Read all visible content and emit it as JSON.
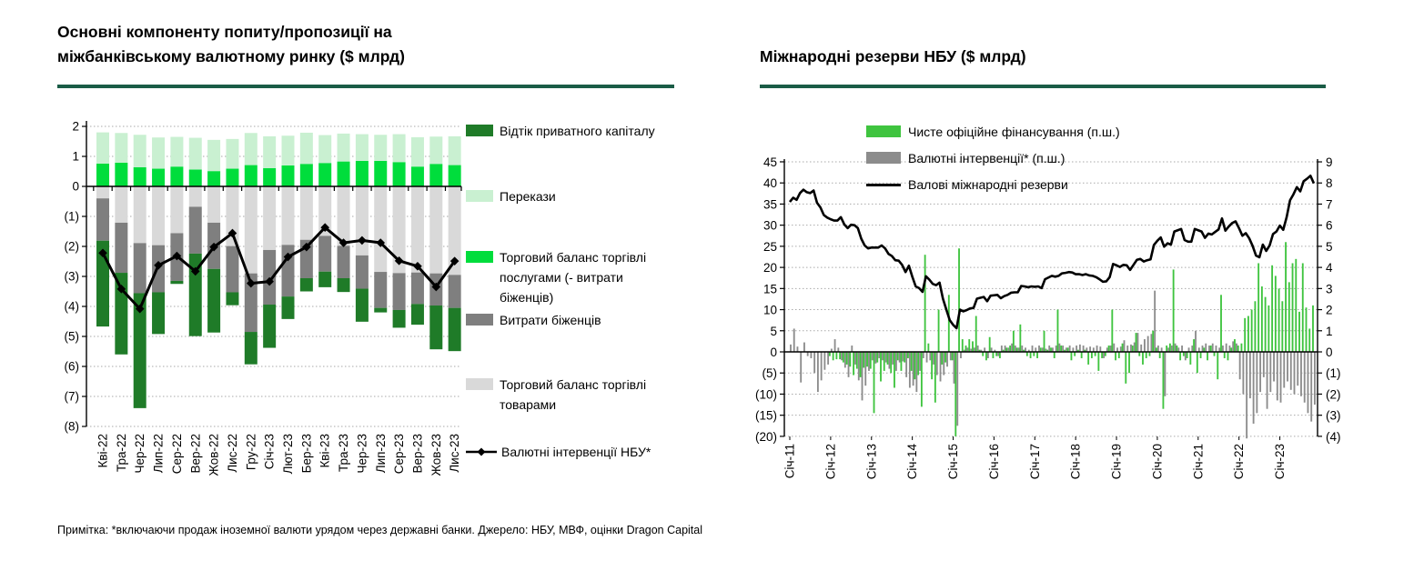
{
  "page": {
    "footnote": "Примітка: *включаючи продаж іноземної валюти урядом через державні банки. Джерело: НБУ, МВФ, оцінки Dragon Capital",
    "accent_underline_color": "#1A5C46",
    "grid_color": "#AAAAAA"
  },
  "chart_data": [
    {
      "type": "bar",
      "variant": "stacked-bars-with-line",
      "title": "Основні компоненту попиту/пропозиції на міжбанківському валютному ринку ($ млрд)",
      "title_lines": [
        "Основні компоненту попиту/пропозиції на",
        "міжбанківському валютному ринку ($ млрд)"
      ],
      "ylim": [
        -8,
        2
      ],
      "yticks": [
        "2",
        "1",
        "0",
        "(1)",
        "(2)",
        "(3)",
        "(4)",
        "(5)",
        "(6)",
        "(7)",
        "(8)"
      ],
      "grid": true,
      "legend_position": "right",
      "categories": [
        "Кві-22",
        "Тра-22",
        "Чер-22",
        "Лип-22",
        "Сер-22",
        "Вер-22",
        "Жов-22",
        "Лис-22",
        "Гру-22",
        "Січ-23",
        "Лют-23",
        "Бер-23",
        "Кві-23",
        "Тра-23",
        "Чер-23",
        "Лип-23",
        "Сер-23",
        "Вер-23",
        "Жов-23",
        "Лис-23"
      ],
      "series": [
        {
          "name": "Торговий баланс торгівлі послугами (- витрати біженців)",
          "kind": "bar",
          "color": "#00DD3C",
          "values": [
            0.76,
            0.79,
            0.64,
            0.59,
            0.66,
            0.56,
            0.51,
            0.59,
            0.71,
            0.61,
            0.7,
            0.75,
            0.78,
            0.83,
            0.85,
            0.85,
            0.81,
            0.66,
            0.75,
            0.71
          ]
        },
        {
          "name": "Перекази",
          "kind": "bar",
          "color": "#C9F0D1",
          "values": [
            1.04,
            0.99,
            1.08,
            1.04,
            0.99,
            1.06,
            1.04,
            0.99,
            1.07,
            1.06,
            0.99,
            1.04,
            0.93,
            0.93,
            0.89,
            0.87,
            0.93,
            0.98,
            0.91,
            0.96
          ]
        },
        {
          "name": "Торговий баланс торгівлі товарами",
          "kind": "bar",
          "color": "#D9D9D9",
          "values": [
            -0.4,
            -1.21,
            -1.89,
            -1.96,
            -1.56,
            -0.68,
            -1.21,
            -1.99,
            -2.9,
            -2.12,
            -1.95,
            -1.78,
            -1.65,
            -1.98,
            -2.3,
            -2.85,
            -2.89,
            -2.87,
            -2.9,
            -2.95
          ]
        },
        {
          "name": "Витрати біженців",
          "kind": "bar",
          "color": "#7F7F7F",
          "values": [
            -1.41,
            -1.67,
            -1.67,
            -1.57,
            -1.59,
            -1.56,
            -1.54,
            -1.54,
            -1.95,
            -1.82,
            -1.72,
            -1.28,
            -1.19,
            -1.08,
            -1.11,
            -1.2,
            -1.23,
            -1.05,
            -1.07,
            -1.1
          ]
        },
        {
          "name": "Відтік приватного капіталу",
          "kind": "bar",
          "color": "#1F7B28",
          "values": [
            -2.86,
            -2.72,
            -3.83,
            -1.39,
            -0.1,
            -2.75,
            -2.12,
            -0.43,
            -1.08,
            -1.44,
            -0.75,
            -0.44,
            -0.52,
            -0.46,
            -1.1,
            -0.15,
            -0.59,
            -0.69,
            -1.46,
            -1.44
          ]
        },
        {
          "name": "Валютні інтервенції НБУ*",
          "kind": "line",
          "color": "#000000",
          "marker": "diamond",
          "values": [
            -2.22,
            -3.42,
            -4.08,
            -2.63,
            -2.32,
            -2.83,
            -2.02,
            -1.56,
            -3.23,
            -3.17,
            -2.35,
            -2.02,
            -1.37,
            -1.88,
            -1.8,
            -1.88,
            -2.48,
            -2.66,
            -3.35,
            -2.49
          ]
        }
      ],
      "legend_order": [
        4,
        1,
        0,
        3,
        2,
        5
      ]
    },
    {
      "type": "bar",
      "variant": "dual-axis-bars-with-line",
      "title": "Міжнародні резерви НБУ ($ млрд)",
      "left_ylim": [
        -20,
        45
      ],
      "right_ylim": [
        -4,
        9
      ],
      "left_yticks": [
        "45",
        "40",
        "35",
        "30",
        "25",
        "20",
        "15",
        "10",
        "5",
        "0",
        "(5)",
        "(10)",
        "(15)",
        "(20)"
      ],
      "right_yticks": [
        "9",
        "8",
        "7",
        "6",
        "5",
        "4",
        "3",
        "2",
        "1",
        "0",
        "(1)",
        "(2)",
        "(3)",
        "(4)"
      ],
      "grid": true,
      "legend_position": "top",
      "months_count": 155,
      "xtick_labels": [
        "Січ-11",
        "Січ-12",
        "Січ-13",
        "Січ-14",
        "Січ-15",
        "Січ-16",
        "Січ-17",
        "Січ-18",
        "Січ-19",
        "Січ-20",
        "Січ-21",
        "Січ-22",
        "Січ-23"
      ],
      "xtick_indices": [
        0,
        12,
        24,
        36,
        48,
        60,
        72,
        84,
        96,
        108,
        120,
        132,
        144
      ],
      "series": [
        {
          "name": "Чисте офіційне фінансування (п.ш.)",
          "kind": "bar",
          "axis": "right",
          "color": "#3FC43F",
          "values": [
            0,
            0,
            0,
            0,
            0,
            0,
            0,
            0,
            0,
            0,
            0,
            0,
            -0.2,
            -0.4,
            -0.35,
            -0.35,
            -0.5,
            -0.6,
            -0.7,
            -1.1,
            -0.8,
            -1.2,
            -0.75,
            -0.7,
            -0.8,
            -2.9,
            -0.5,
            -1.4,
            -0.9,
            -0.6,
            -1.0,
            -1.7,
            -0.4,
            -0.9,
            -0.5,
            -0.3,
            -0.9,
            -1.3,
            -1.1,
            -2.6,
            4.6,
            0.4,
            -1.3,
            -2.4,
            2.0,
            -0.6,
            -0.5,
            2.7,
            -0.4,
            -4.0,
            4.9,
            0.6,
            0.3,
            0.6,
            0.5,
            1.7,
            0.1,
            -0.2,
            -0.4,
            0.7,
            -0.3,
            -0.2,
            -0.3,
            0.1,
            0.2,
            0.3,
            1.0,
            0.2,
            1.3,
            0.1,
            -0.2,
            -0.3,
            -0.2,
            -0.3,
            0.2,
            1.0,
            0.1,
            0.2,
            -0.3,
            2.0,
            0.3,
            0.1,
            0.2,
            -0.4,
            -0.2,
            0.1,
            -0.3,
            0.1,
            -0.6,
            -0.3,
            -0.2,
            -0.9,
            -0.3,
            -0.2,
            0.3,
            2.0,
            -0.4,
            -0.3,
            0.4,
            -1.5,
            -1.0,
            0.3,
            0.9,
            -0.2,
            -0.6,
            -0.3,
            -0.2,
            1.0,
            0.2,
            -0.3,
            -2.7,
            0.3,
            0.4,
            3.9,
            0.3,
            -0.4,
            -0.2,
            -0.3,
            -0.6,
            0.6,
            -1.0,
            -0.3,
            0.2,
            -0.4,
            0.3,
            -0.2,
            -1.3,
            2.7,
            -0.3,
            -0.4,
            0.2,
            0.6,
            0.3,
            0.4,
            1.6,
            1.7,
            2.0,
            2.4,
            4.2,
            3.1,
            2.6,
            2.2,
            4.1,
            3.6,
            3.0,
            2.4,
            5.2,
            3.3,
            4.2,
            4.4,
            1.9,
            4.2,
            2.1,
            1.1,
            2.2
          ]
        },
        {
          "name": "Валютні інтервенції* (п.ш.)",
          "kind": "bar",
          "axis": "right",
          "color": "#8C8C8C",
          "values": [
            0.35,
            1.1,
            0.25,
            -1.45,
            0.45,
            -0.2,
            -0.3,
            -1.0,
            -1.9,
            -1.35,
            -0.85,
            -0.6,
            0.15,
            0.6,
            0.2,
            -0.4,
            -0.75,
            -1.2,
            0.3,
            -0.6,
            -1.35,
            -2.3,
            -1.6,
            -0.9,
            -0.4,
            -0.55,
            -0.3,
            -0.4,
            -0.5,
            -0.8,
            -0.6,
            -0.9,
            -0.5,
            -0.45,
            -1.2,
            -1.7,
            -1.6,
            -1.9,
            -0.9,
            -0.3,
            -0.5,
            -0.4,
            -0.6,
            -1.1,
            -1.4,
            -1.1,
            -0.7,
            -0.4,
            -1.5,
            -3.5,
            -0.3,
            0.1,
            0.2,
            0.15,
            0.2,
            0.3,
            0.1,
            0.2,
            -0.3,
            0.2,
            0.1,
            -0.2,
            0.3,
            0.3,
            0.2,
            0.4,
            0.3,
            0.2,
            0.3,
            0.2,
            0.1,
            0.3,
            0.2,
            0.3,
            0.2,
            0.15,
            0.3,
            0.2,
            0.3,
            0.4,
            0.3,
            0.2,
            0.3,
            0.2,
            0.3,
            0.35,
            0.3,
            0.2,
            0.25,
            0.2,
            0.3,
            0.25,
            -0.3,
            0.2,
            0.3,
            0.4,
            0.2,
            0.25,
            0.55,
            0.3,
            0.35,
            0.45,
            0.9,
            0.35,
            0.6,
            0.75,
            0.85,
            2.9,
            0.3,
            0.2,
            -2.1,
            0.2,
            0.3,
            0.4,
            0.2,
            0.3,
            -0.4,
            0.2,
            0.3,
            1.0,
            0.2,
            0.3,
            0.4,
            0.3,
            0.4,
            0.3,
            0.2,
            0.3,
            0.4,
            0.3,
            0.5,
            0.4,
            -1.3,
            -2.0,
            -4.1,
            -2.2,
            -3.4,
            -2.9,
            -1.9,
            -1.2,
            -2.7,
            -1.9,
            -1.4,
            -2.3,
            -2.4,
            -1.7,
            -1.4,
            -1.8,
            -2.0,
            -1.6,
            -2.1,
            -2.4,
            -2.9,
            -3.3,
            -2.5
          ]
        },
        {
          "name": "Валові міжнародні резерви",
          "kind": "line",
          "axis": "left",
          "color": "#000000",
          "values": [
            35.5,
            36.5,
            36.0,
            37.6,
            38.4,
            37.8,
            37.6,
            38.2,
            35.3,
            34.2,
            32.4,
            31.8,
            31.4,
            31.1,
            31.1,
            31.9,
            30.2,
            29.3,
            30.1,
            30.0,
            29.3,
            26.8,
            25.2,
            24.5,
            24.7,
            24.7,
            24.7,
            25.2,
            24.5,
            23.2,
            22.7,
            21.7,
            21.6,
            20.6,
            18.9,
            20.4,
            17.8,
            15.5,
            15.1,
            14.2,
            17.9,
            17.1,
            16.1,
            15.8,
            16.4,
            12.6,
            10.0,
            7.5,
            6.4,
            5.6,
            10.0,
            9.6,
            9.9,
            10.3,
            10.4,
            12.6,
            12.8,
            13.0,
            12.0,
            13.3,
            13.4,
            13.5,
            12.7,
            13.2,
            13.5,
            14.0,
            14.1,
            14.1,
            15.6,
            15.5,
            15.3,
            15.5,
            15.4,
            15.5,
            15.1,
            17.2,
            17.6,
            18.0,
            17.8,
            18.0,
            18.6,
            18.7,
            18.9,
            18.8,
            18.4,
            18.4,
            18.2,
            18.4,
            18.1,
            18.0,
            17.7,
            17.2,
            16.6,
            16.7,
            17.7,
            20.8,
            20.5,
            20.1,
            20.6,
            20.5,
            19.4,
            20.6,
            21.8,
            22.0,
            21.4,
            21.7,
            21.9,
            25.3,
            26.3,
            27.1,
            24.9,
            25.7,
            25.4,
            28.5,
            28.8,
            29.1,
            26.5,
            26.1,
            26.1,
            29.1,
            28.8,
            28.5,
            27.0,
            28.0,
            27.8,
            28.4,
            29.0,
            31.6,
            28.7,
            29.7,
            30.5,
            30.9,
            29.3,
            27.5,
            28.1,
            26.9,
            25.1,
            22.8,
            22.4,
            25.4,
            23.9,
            25.2,
            27.9,
            28.5,
            29.9,
            28.9,
            31.9,
            35.9,
            37.3,
            39.0,
            38.0,
            40.4,
            41.0,
            41.7,
            39.9
          ]
        }
      ]
    }
  ]
}
